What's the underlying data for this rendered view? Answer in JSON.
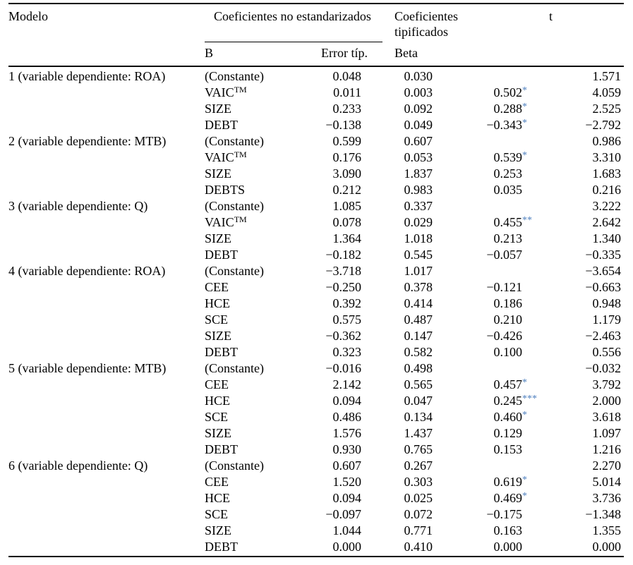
{
  "table": {
    "star_color": "#4d7fbe",
    "header": {
      "modelo": "Modelo",
      "coef_no_estandarizados": "Coeficientes no estandarizados",
      "coef_tipificados": "Coeficientes tipificados",
      "t": "t",
      "b": "B",
      "error_tip": "Error típ.",
      "beta": "Beta"
    },
    "rows": [
      {
        "model": "1 (variable dependiente: ROA)",
        "variable": "(Constante)",
        "variable_sup": "",
        "b": "0.048",
        "std_error": "0.030",
        "beta": "",
        "stars": "",
        "t": "1.571"
      },
      {
        "model": "",
        "variable": "VAIC",
        "variable_sup": "TM",
        "b": "0.011",
        "std_error": "0.003",
        "beta": "0.502",
        "stars": "*",
        "t": "4.059"
      },
      {
        "model": "",
        "variable": "SIZE",
        "variable_sup": "",
        "b": "0.233",
        "std_error": "0.092",
        "beta": "0.288",
        "stars": "*",
        "t": "2.525"
      },
      {
        "model": "",
        "variable": "DEBT",
        "variable_sup": "",
        "b": "−0.138",
        "std_error": "0.049",
        "beta": "−0.343",
        "stars": "*",
        "t": "−2.792"
      },
      {
        "model": "2 (variable dependiente: MTB)",
        "variable": "(Constante)",
        "variable_sup": "",
        "b": "0.599",
        "std_error": "0.607",
        "beta": "",
        "stars": "",
        "t": "0.986"
      },
      {
        "model": "",
        "variable": "VAIC",
        "variable_sup": "TM",
        "b": "0.176",
        "std_error": "0.053",
        "beta": "0.539",
        "stars": "*",
        "t": "3.310"
      },
      {
        "model": "",
        "variable": "SIZE",
        "variable_sup": "",
        "b": "3.090",
        "std_error": "1.837",
        "beta": "0.253",
        "stars": "",
        "t": "1.683"
      },
      {
        "model": "",
        "variable": "DEBTS",
        "variable_sup": "",
        "b": "0.212",
        "std_error": "0.983",
        "beta": "0.035",
        "stars": "",
        "t": "0.216"
      },
      {
        "model": "3 (variable dependiente: Q)",
        "variable": "(Constante)",
        "variable_sup": "",
        "b": "1.085",
        "std_error": "0.337",
        "beta": "",
        "stars": "",
        "t": "3.222"
      },
      {
        "model": "",
        "variable": "VAIC",
        "variable_sup": "TM",
        "b": "0.078",
        "std_error": "0.029",
        "beta": "0.455",
        "stars": "**",
        "t": "2.642"
      },
      {
        "model": "",
        "variable": "SIZE",
        "variable_sup": "",
        "b": "1.364",
        "std_error": "1.018",
        "beta": "0.213",
        "stars": "",
        "t": "1.340"
      },
      {
        "model": "",
        "variable": "DEBT",
        "variable_sup": "",
        "b": "−0.182",
        "std_error": "0.545",
        "beta": "−0.057",
        "stars": "",
        "t": "−0.335"
      },
      {
        "model": "4 (variable dependiente: ROA)",
        "variable": "(Constante)",
        "variable_sup": "",
        "b": "−3.718",
        "std_error": "1.017",
        "beta": "",
        "stars": "",
        "t": "−3.654"
      },
      {
        "model": "",
        "variable": "CEE",
        "variable_sup": "",
        "b": "−0.250",
        "std_error": "0.378",
        "beta": "−0.121",
        "stars": "",
        "t": "−0.663"
      },
      {
        "model": "",
        "variable": "HCE",
        "variable_sup": "",
        "b": "0.392",
        "std_error": "0.414",
        "beta": "0.186",
        "stars": "",
        "t": "0.948"
      },
      {
        "model": "",
        "variable": "SCE",
        "variable_sup": "",
        "b": "0.575",
        "std_error": "0.487",
        "beta": "0.210",
        "stars": "",
        "t": "1.179"
      },
      {
        "model": "",
        "variable": "SIZE",
        "variable_sup": "",
        "b": "−0.362",
        "std_error": "0.147",
        "beta": "−0.426",
        "stars": "",
        "t": "−2.463"
      },
      {
        "model": "",
        "variable": "DEBT",
        "variable_sup": "",
        "b": "0.323",
        "std_error": "0.582",
        "beta": "0.100",
        "stars": "",
        "t": "0.556"
      },
      {
        "model": "5 (variable dependiente: MTB)",
        "variable": "(Constante)",
        "variable_sup": "",
        "b": "−0.016",
        "std_error": "0.498",
        "beta": "",
        "stars": "",
        "t": "−0.032"
      },
      {
        "model": "",
        "variable": "CEE",
        "variable_sup": "",
        "b": "2.142",
        "std_error": "0.565",
        "beta": "0.457",
        "stars": "*",
        "t": "3.792"
      },
      {
        "model": "",
        "variable": "HCE",
        "variable_sup": "",
        "b": "0.094",
        "std_error": "0.047",
        "beta": "0.245",
        "stars": "***",
        "t": "2.000"
      },
      {
        "model": "",
        "variable": "SCE",
        "variable_sup": "",
        "b": "0.486",
        "std_error": "0.134",
        "beta": "0.460",
        "stars": "*",
        "t": "3.618"
      },
      {
        "model": "",
        "variable": "SIZE",
        "variable_sup": "",
        "b": "1.576",
        "std_error": "1.437",
        "beta": "0.129",
        "stars": "",
        "t": "1.097"
      },
      {
        "model": "",
        "variable": "DEBT",
        "variable_sup": "",
        "b": "0.930",
        "std_error": "0.765",
        "beta": "0.153",
        "stars": "",
        "t": "1.216"
      },
      {
        "model": "6 (variable dependiente: Q)",
        "variable": "(Constante)",
        "variable_sup": "",
        "b": "0.607",
        "std_error": "0.267",
        "beta": "",
        "stars": "",
        "t": "2.270"
      },
      {
        "model": "",
        "variable": "CEE",
        "variable_sup": "",
        "b": "1.520",
        "std_error": "0.303",
        "beta": "0.619",
        "stars": "*",
        "t": "5.014"
      },
      {
        "model": "",
        "variable": "HCE",
        "variable_sup": "",
        "b": "0.094",
        "std_error": "0.025",
        "beta": "0.469",
        "stars": "*",
        "t": "3.736"
      },
      {
        "model": "",
        "variable": "SCE",
        "variable_sup": "",
        "b": "−0.097",
        "std_error": "0.072",
        "beta": "−0.175",
        "stars": "",
        "t": "−1.348"
      },
      {
        "model": "",
        "variable": "SIZE",
        "variable_sup": "",
        "b": "1.044",
        "std_error": "0.771",
        "beta": "0.163",
        "stars": "",
        "t": "1.355"
      },
      {
        "model": "",
        "variable": "DEBT",
        "variable_sup": "",
        "b": "0.000",
        "std_error": "0.410",
        "beta": "0.000",
        "stars": "",
        "t": "0.000"
      }
    ]
  }
}
